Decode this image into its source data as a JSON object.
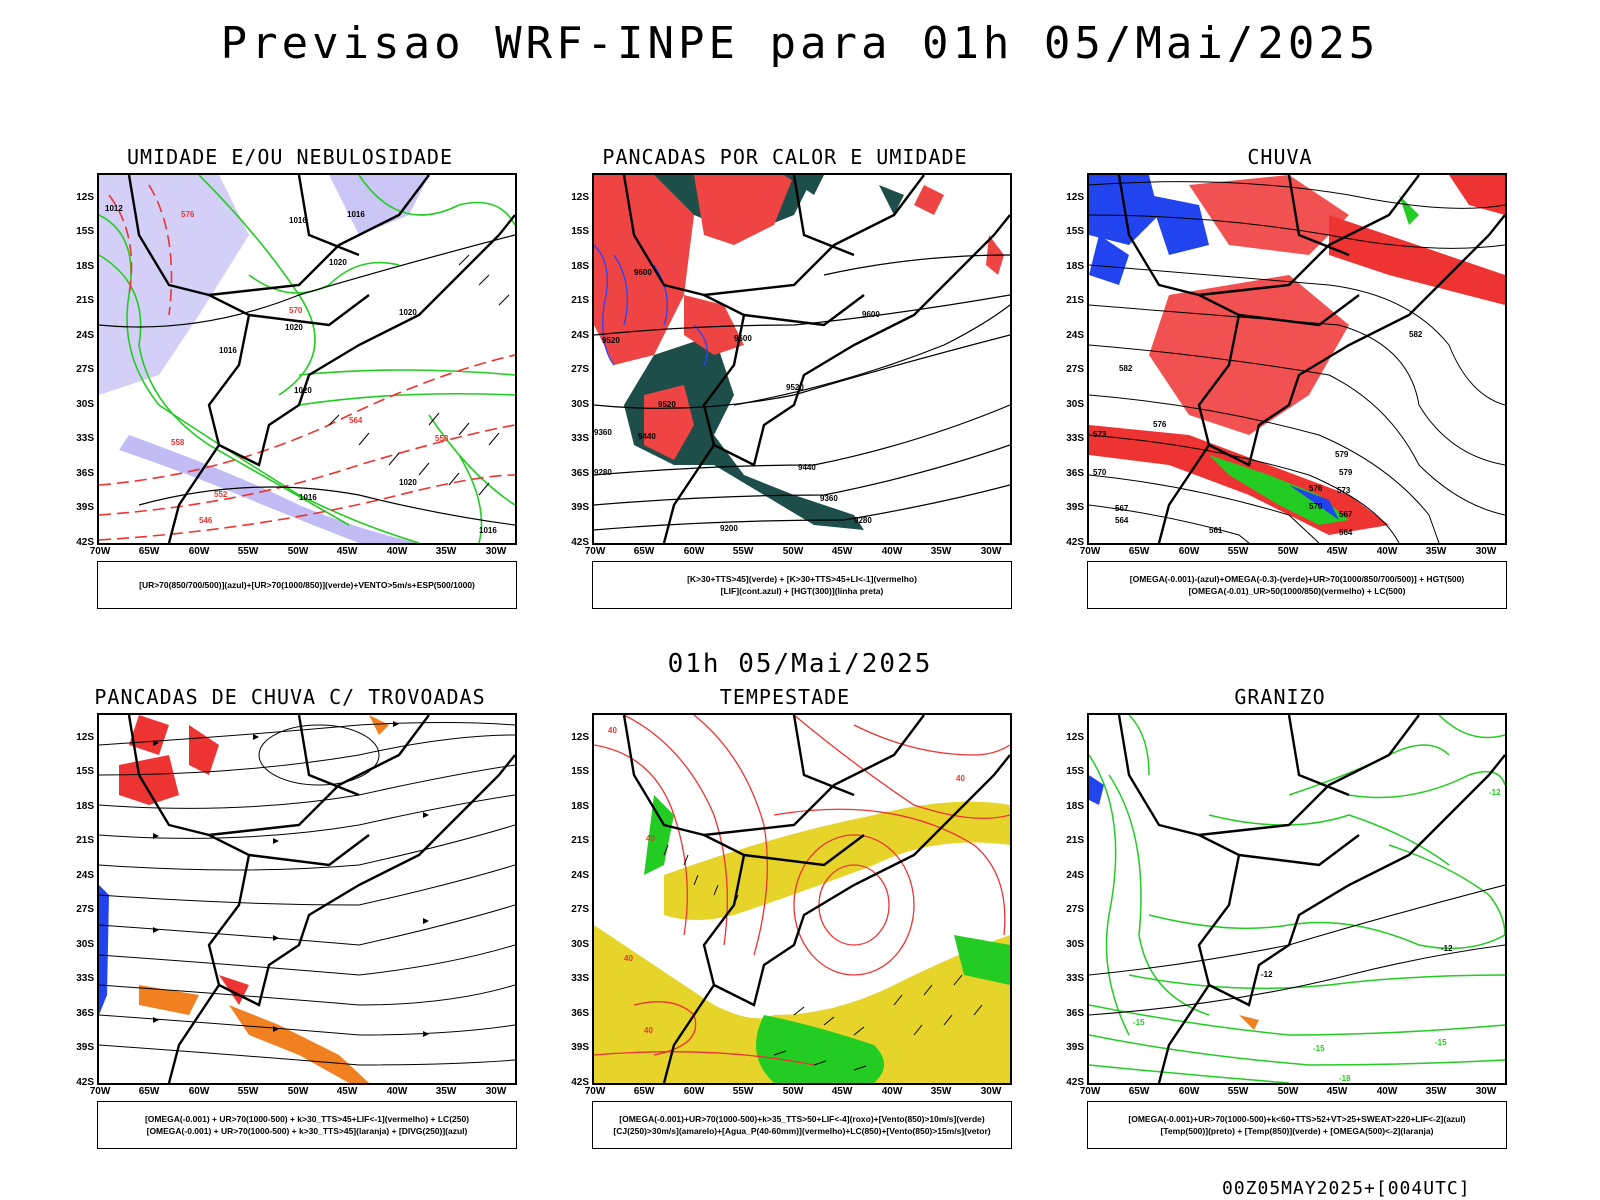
{
  "title": "Previsao WRF-INPE  para 01h 05/Mai/2025",
  "mid_title": "01h 05/Mai/2025",
  "footer": "00Z05MAY2025+[004UTC]",
  "axes": {
    "lat_labels": [
      "12S",
      "15S",
      "18S",
      "21S",
      "24S",
      "27S",
      "30S",
      "33S",
      "36S",
      "39S",
      "42S"
    ],
    "lon_labels": [
      "70W",
      "65W",
      "60W",
      "55W",
      "50W",
      "45W",
      "40W",
      "35W",
      "30W"
    ]
  },
  "panels": [
    {
      "id": "umidade",
      "title": "UMIDADE E/OU NEBULOSIDADE",
      "legend": [
        "[UR>70(850/700/500)](azul)+[UR>70(1000/850)](verde)+VENTO>5m/s+ESP(500/1000)"
      ],
      "contour_labels": [
        "1012",
        "1016",
        "1016",
        "1020",
        "1020",
        "1016",
        "1020",
        "1020",
        "1016",
        "1020",
        "1016",
        "576",
        "570",
        "564",
        "558",
        "552",
        "546",
        "558"
      ],
      "colors": {
        "fill": "#a8a0f0",
        "line": "#22cc22",
        "dash": "#ee3333"
      }
    },
    {
      "id": "pancadas-calor",
      "title": "PANCADAS POR CALOR E UMIDADE",
      "legend": [
        "[K>30+TTS>45](verde)  +  [K>30+TTS>45+LI<-1](vermelho)",
        "[LIF](cont.azul)  +  [HGT(300)](linha preta)"
      ],
      "contour_labels": [
        "9600",
        "9520",
        "9600",
        "9600",
        "9520",
        "9520",
        "9440",
        "9440",
        "9360",
        "9280",
        "9200",
        "9360",
        "9280"
      ],
      "colors": {
        "fill": "#ee4444",
        "fill2": "#1e4e4a",
        "line": "#3344ee"
      }
    },
    {
      "id": "chuva",
      "title": "CHUVA",
      "legend": [
        "[OMEGA(-0.001)-(azul)+OMEGA(-0.3)-(verde)+UR>70(1000/850/700/500)]  +  HGT(500)",
        "[OMEGA(-0.01)_UR>50(1000/850)(vermelho)  +  LC(500)"
      ],
      "contour_labels": [
        "582",
        "582",
        "579",
        "576",
        "573",
        "570",
        "567",
        "564",
        "579",
        "576",
        "573",
        "570",
        "567",
        "564",
        "561"
      ],
      "colors": {
        "fill": "#ee3333",
        "fill2": "#2244ee",
        "fill3": "#22cc22"
      }
    },
    {
      "id": "trovoadas",
      "title": "PANCADAS DE CHUVA C/ TROVOADAS",
      "legend": [
        "[OMEGA(-0.001)  +  UR>70(1000-500)  +  k>30_TTS>45+LIF<-1](vermelho)  +  LC(250)",
        "[OMEGA(-0.001)  +  UR>70(1000-500)  +  k>30_TTS>45](laranja)  +  [DIVG(250)](azul)"
      ],
      "contour_labels": [],
      "colors": {
        "fill": "#ee3333",
        "fill2": "#f08020",
        "fill3": "#2244ee"
      }
    },
    {
      "id": "tempestade",
      "title": "TEMPESTADE",
      "legend": [
        "[OMEGA(-0.001)+UR>70(1000-500)+k>35_TTS>50+LIF<-4](roxo)+[Vento(850)>10m/s](verde)",
        "[CJ(250)>30m/s](amarelo)+[Agua_P(40-60mm)](vermelho)+LC(850)+[Vento(850)>15m/s](vetor)"
      ],
      "contour_labels": [
        "40",
        "40",
        "40",
        "40",
        "40"
      ],
      "colors": {
        "fill": "#e6d42a",
        "fill2": "#22cc22",
        "line": "#ee3333"
      }
    },
    {
      "id": "granizo",
      "title": "GRANIZO",
      "legend": [
        "[OMEGA(-0.001)+UR>70(1000-500)+k<60+TTS>52+VT>25+SWEAT>220+LIF<-2](azul)",
        "[Temp(500)](preto)  +  [Temp(850)](verde)  +  [OMEGA(500)<-2](laranja)"
      ],
      "contour_labels": [
        "-12",
        "-12",
        "-15",
        "-15",
        "-18",
        "-12",
        "-15"
      ],
      "colors": {
        "line": "#22cc22",
        "fill": "#2244ee",
        "fill2": "#f08020"
      }
    }
  ]
}
